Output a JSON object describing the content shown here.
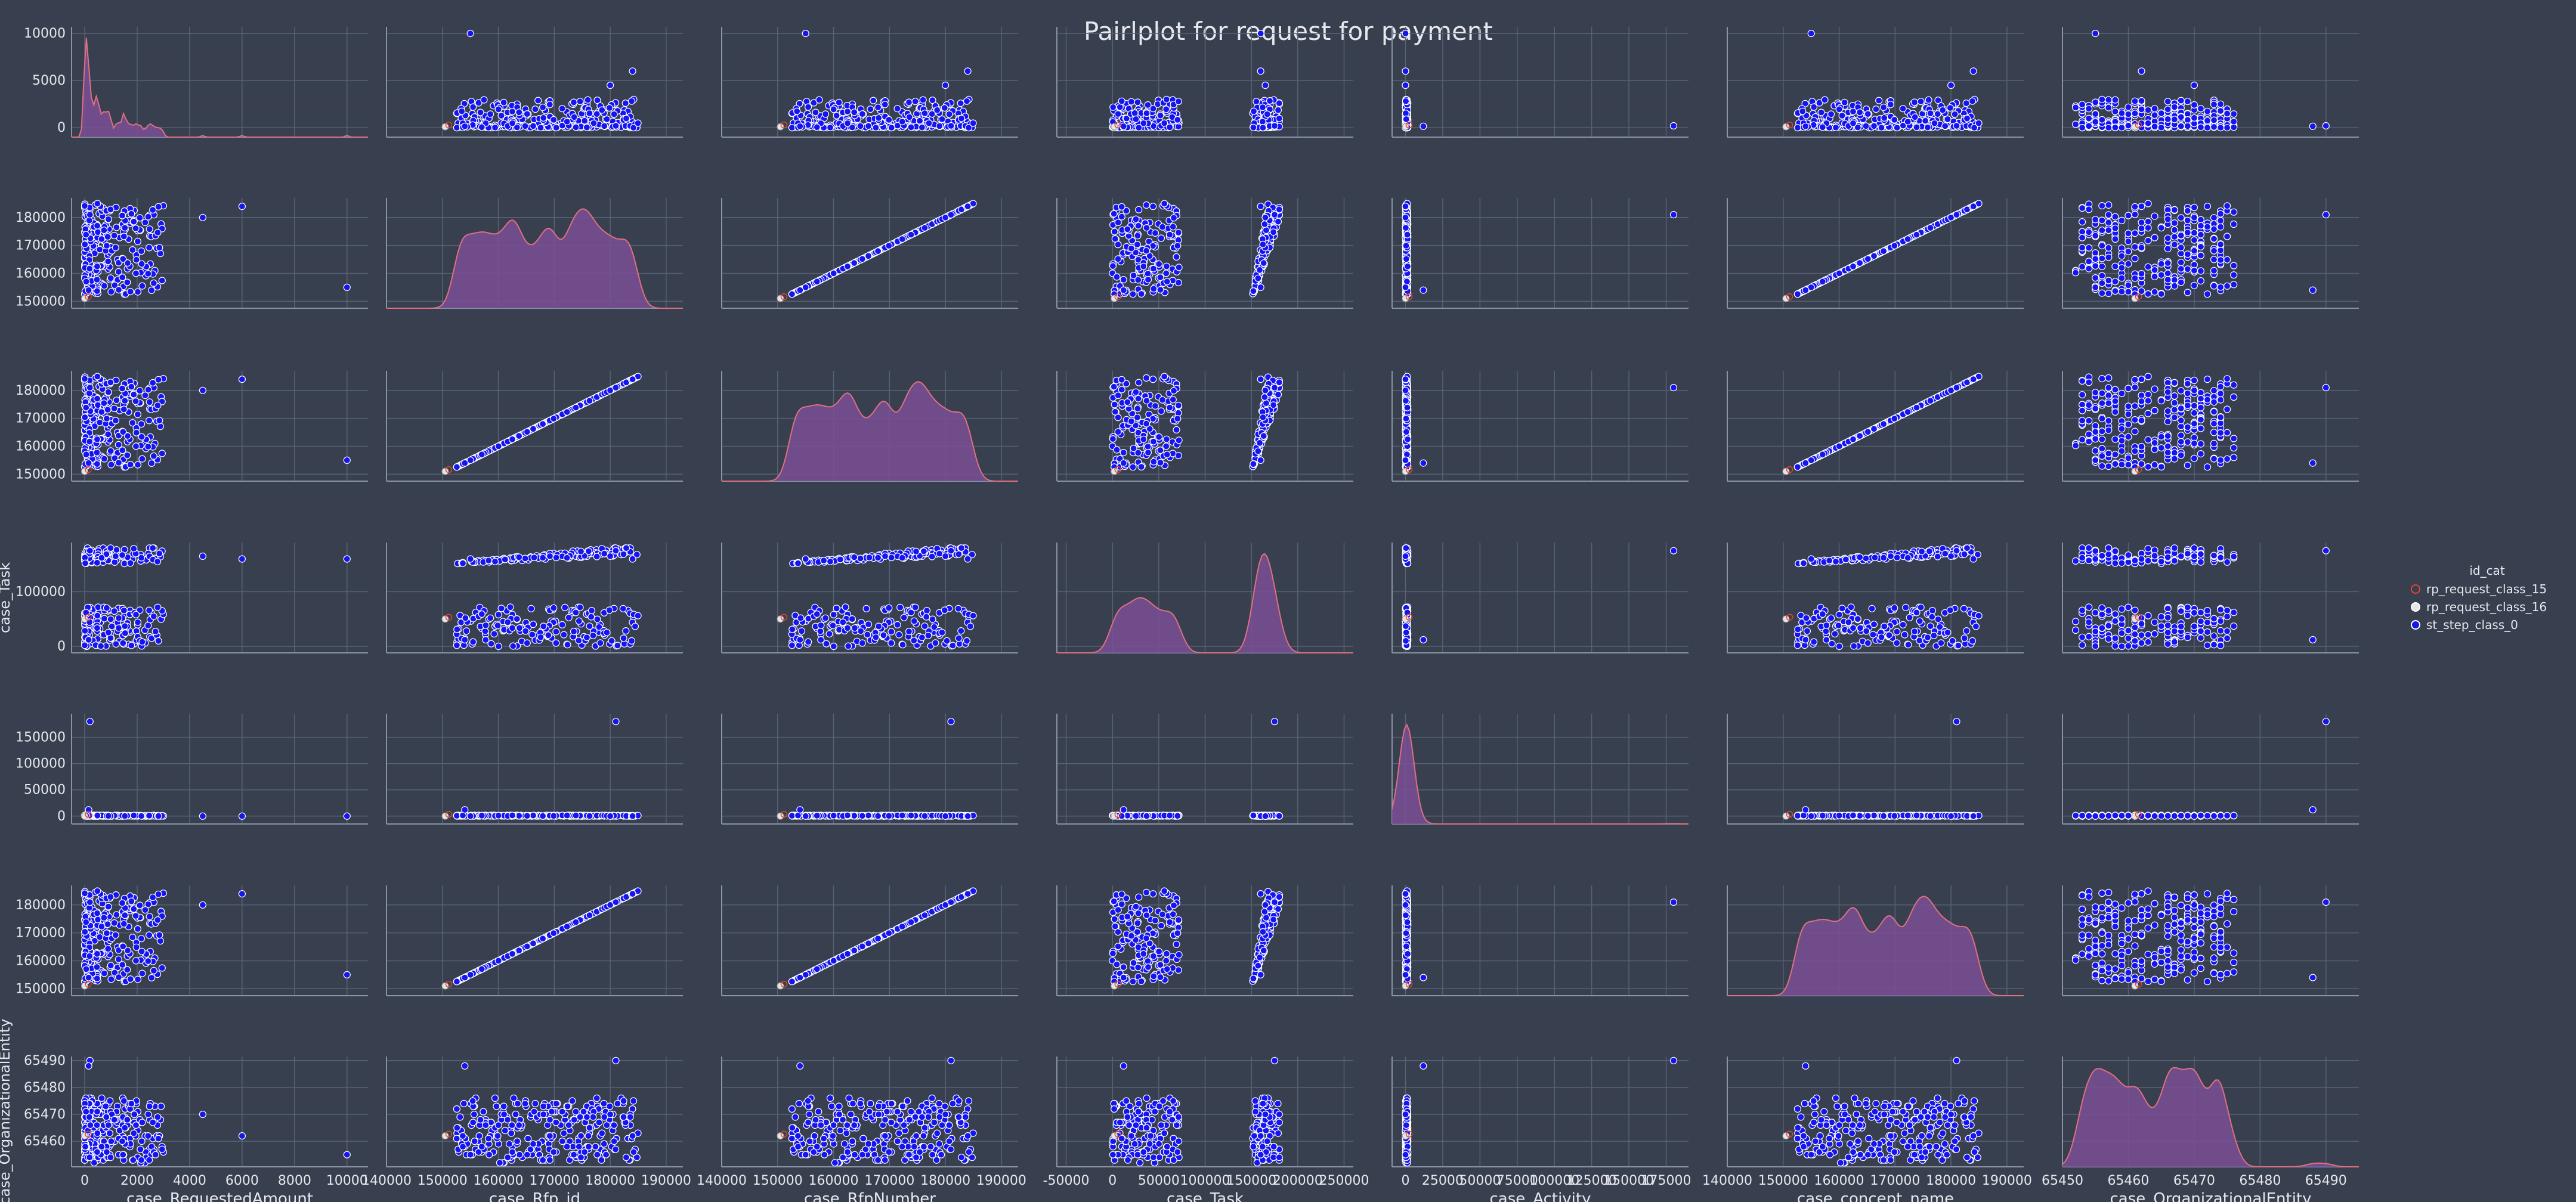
{
  "chart_data": {
    "type": "scatter",
    "kind": "pairplot",
    "title": "Pairlplot for request for payment",
    "variables": [
      {
        "name": "case_RequestedAmount",
        "xlim": [
          -500,
          10800
        ],
        "ylim": [
          -1000,
          10700
        ],
        "ticks": [
          0,
          2000,
          4000,
          6000,
          8000,
          10000
        ],
        "tick_labels": [
          "0",
          "2000",
          "4000",
          "6000",
          "8000",
          "10000"
        ],
        "y_tick_labels": [
          "0",
          "5000",
          "10000"
        ],
        "y_ticks": [
          0,
          5000,
          10000
        ]
      },
      {
        "name": "case_Rfp_id",
        "xlim": [
          140000,
          193000
        ],
        "ylim": [
          147500,
          187000
        ],
        "ticks": [
          140000,
          150000,
          160000,
          170000,
          180000,
          190000
        ],
        "tick_labels": [
          "140000",
          "150000",
          "160000",
          "170000",
          "180000",
          "190000"
        ],
        "y_tick_labels": [
          "150000",
          "160000",
          "170000",
          "180000"
        ],
        "y_ticks": [
          150000,
          160000,
          170000,
          180000
        ]
      },
      {
        "name": "case_RfpNumber",
        "xlim": [
          140000,
          193000
        ],
        "ylim": [
          147500,
          187000
        ],
        "ticks": [
          140000,
          150000,
          160000,
          170000,
          180000,
          190000
        ],
        "tick_labels": [
          "140000",
          "150000",
          "160000",
          "170000",
          "180000",
          "190000"
        ],
        "y_tick_labels": [
          "150000",
          "160000",
          "170000",
          "180000"
        ],
        "y_ticks": [
          150000,
          160000,
          170000,
          180000
        ]
      },
      {
        "name": "case_Task",
        "xlim": [
          -60000,
          260000
        ],
        "ylim": [
          -12000,
          190000
        ],
        "ticks": [
          -50000,
          0,
          50000,
          100000,
          150000,
          200000,
          250000
        ],
        "tick_labels": [
          "-50000",
          "0",
          "50000",
          "100000",
          "150000",
          "200000",
          "250000"
        ],
        "y_tick_labels": [
          "0",
          "100000"
        ],
        "y_ticks": [
          0,
          100000
        ]
      },
      {
        "name": "case_Activity",
        "xlim": [
          -9000,
          190000
        ],
        "ylim": [
          -15000,
          195000
        ],
        "ticks": [
          0,
          25000,
          50000,
          75000,
          100000,
          125000,
          150000,
          175000
        ],
        "tick_labels": [
          "0",
          "25000",
          "50000",
          "75000",
          "100000",
          "125000",
          "150000",
          "175000"
        ],
        "y_tick_labels": [
          "0",
          "50000",
          "100000",
          "150000"
        ],
        "y_ticks": [
          0,
          50000,
          100000,
          150000
        ]
      },
      {
        "name": "case_concept_name",
        "xlim": [
          140000,
          193000
        ],
        "ylim": [
          147500,
          187000
        ],
        "ticks": [
          140000,
          150000,
          160000,
          170000,
          180000,
          190000
        ],
        "tick_labels": [
          "140000",
          "150000",
          "160000",
          "170000",
          "180000",
          "190000"
        ],
        "y_tick_labels": [
          "150000",
          "160000",
          "170000",
          "180000"
        ],
        "y_ticks": [
          150000,
          160000,
          170000,
          180000
        ]
      },
      {
        "name": "case_OrganizationalEntity",
        "xlim": [
          65450,
          65495
        ],
        "ylim": [
          65450.5,
          65491.5
        ],
        "ticks": [
          65450,
          65460,
          65470,
          65480,
          65490
        ],
        "tick_labels": [
          "65450",
          "65460",
          "65470",
          "65480",
          "65490"
        ],
        "y_tick_labels": [
          "65460",
          "65470",
          "65480",
          "65490"
        ],
        "y_ticks": [
          65460,
          65470,
          65480,
          65490
        ]
      }
    ],
    "y_axis_labels_visible": [
      "case_Task",
      "case_OrganizationalEntity"
    ],
    "hue": "id_cat",
    "legend": {
      "title": "id_cat",
      "placement": "right",
      "entries": [
        {
          "label": "rp_request_class_15",
          "color": "#e8452d"
        },
        {
          "label": "rp_request_class_16",
          "color": "#e6e6e6"
        },
        {
          "label": "st_step_class_0",
          "color": "#1515f0"
        }
      ]
    },
    "grid": true,
    "diagonal": "kde",
    "off_diagonal": "scatter",
    "colors": {
      "background": "#383f4e",
      "grid": "#586275",
      "text": "#e6e8ee",
      "marker_fill": "#1515f0",
      "marker_edge": "#ffffff",
      "kde_fill": "#7a4f97"
    },
    "series": [
      {
        "name": "st_step_class_0",
        "color": "#1515f0",
        "role": "main",
        "description_points": "RequestedAmount mostly 0-3000, Rfp_id 152000-185000, Task bimodal 0-70000 and 150000-180000, Activity ~0, OrganizationalEntity 65452-65490"
      },
      {
        "name": "rp_request_class_15",
        "color": "#e8452d",
        "role": "minor"
      },
      {
        "name": "rp_request_class_16",
        "color": "#e6e6e6",
        "role": "minor"
      }
    ]
  }
}
